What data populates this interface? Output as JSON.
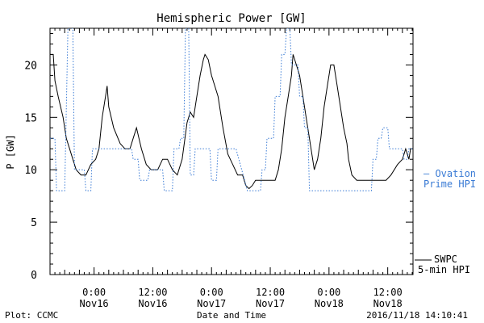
{
  "chart_data": {
    "type": "line",
    "title": "Hemispheric Power [GW]",
    "xlabel": "Date and Time",
    "ylabel": "P [GW]",
    "ylim": [
      0,
      23.5
    ],
    "xlim": [
      "2016-11-15 15:00",
      "2016-11-18 17:10"
    ],
    "yticks": [
      0,
      5,
      10,
      15,
      20
    ],
    "xticks": [
      {
        "time": "2016-11-16 00:00",
        "line1": "0:00",
        "line2": "Nov16"
      },
      {
        "time": "2016-11-16 12:00",
        "line1": "12:00",
        "line2": "Nov16"
      },
      {
        "time": "2016-11-17 00:00",
        "line1": "0:00",
        "line2": "Nov17"
      },
      {
        "time": "2016-11-17 12:00",
        "line1": "12:00",
        "line2": "Nov17"
      },
      {
        "time": "2016-11-18 00:00",
        "line1": "0:00",
        "line2": "Nov18"
      },
      {
        "time": "2016-11-18 12:00",
        "line1": "12:00",
        "line2": "Nov18"
      }
    ],
    "grid": false,
    "legend_position": "right",
    "series": [
      {
        "name": "SWPC 5-min HPI",
        "label_lines": [
          "SWPC",
          "5-min HPI"
        ],
        "color": "#000000",
        "style": "solid",
        "points": [
          [
            "2016-11-15 15:00",
            21
          ],
          [
            "2016-11-15 15:40",
            21
          ],
          [
            "2016-11-15 16:00",
            18.5
          ],
          [
            "2016-11-15 16:40",
            17
          ],
          [
            "2016-11-15 17:40",
            15
          ],
          [
            "2016-11-15 18:20",
            13
          ],
          [
            "2016-11-15 19:00",
            12
          ],
          [
            "2016-11-15 19:40",
            11
          ],
          [
            "2016-11-15 20:20",
            10
          ],
          [
            "2016-11-15 21:20",
            9.5
          ],
          [
            "2016-11-15 22:20",
            9.5
          ],
          [
            "2016-11-15 23:20",
            10.5
          ],
          [
            "2016-11-16 00:20",
            11
          ],
          [
            "2016-11-16 01:00",
            12
          ],
          [
            "2016-11-16 01:40",
            15
          ],
          [
            "2016-11-16 02:20",
            17
          ],
          [
            "2016-11-16 02:40",
            18
          ],
          [
            "2016-11-16 03:00",
            16
          ],
          [
            "2016-11-16 04:00",
            14
          ],
          [
            "2016-11-16 05:20",
            12.5
          ],
          [
            "2016-11-16 06:20",
            12
          ],
          [
            "2016-11-16 07:20",
            12
          ],
          [
            "2016-11-16 08:00",
            13
          ],
          [
            "2016-11-16 08:40",
            14
          ],
          [
            "2016-11-16 09:40",
            12
          ],
          [
            "2016-11-16 10:40",
            10.5
          ],
          [
            "2016-11-16 11:40",
            10
          ],
          [
            "2016-11-16 13:00",
            10
          ],
          [
            "2016-11-16 14:00",
            11
          ],
          [
            "2016-11-16 15:00",
            11
          ],
          [
            "2016-11-16 16:00",
            10
          ],
          [
            "2016-11-16 17:00",
            9.5
          ],
          [
            "2016-11-16 18:00",
            11
          ],
          [
            "2016-11-16 19:00",
            14.5
          ],
          [
            "2016-11-16 19:40",
            15.5
          ],
          [
            "2016-11-16 20:20",
            15
          ],
          [
            "2016-11-16 21:00",
            17
          ],
          [
            "2016-11-16 21:40",
            19
          ],
          [
            "2016-11-16 22:20",
            20.5
          ],
          [
            "2016-11-16 22:40",
            21
          ],
          [
            "2016-11-16 23:20",
            20.5
          ],
          [
            "2016-11-17 00:00",
            19
          ],
          [
            "2016-11-17 01:20",
            17
          ],
          [
            "2016-11-17 02:20",
            14
          ],
          [
            "2016-11-17 03:20",
            11.5
          ],
          [
            "2016-11-17 04:20",
            10.5
          ],
          [
            "2016-11-17 05:20",
            9.5
          ],
          [
            "2016-11-17 06:20",
            9.5
          ],
          [
            "2016-11-17 07:00",
            8.5
          ],
          [
            "2016-11-17 07:40",
            8.2
          ],
          [
            "2016-11-17 08:20",
            8.5
          ],
          [
            "2016-11-17 09:00",
            9
          ],
          [
            "2016-11-17 10:00",
            9
          ],
          [
            "2016-11-17 11:00",
            9
          ],
          [
            "2016-11-17 12:00",
            9
          ],
          [
            "2016-11-17 13:00",
            9
          ],
          [
            "2016-11-17 13:40",
            10
          ],
          [
            "2016-11-17 14:20",
            12
          ],
          [
            "2016-11-17 15:00",
            15
          ],
          [
            "2016-11-17 15:40",
            17
          ],
          [
            "2016-11-17 16:20",
            19
          ],
          [
            "2016-11-17 16:40",
            21
          ],
          [
            "2016-11-17 17:20",
            20
          ],
          [
            "2016-11-17 18:00",
            19
          ],
          [
            "2016-11-17 18:40",
            17
          ],
          [
            "2016-11-17 19:20",
            15
          ],
          [
            "2016-11-17 20:00",
            13
          ],
          [
            "2016-11-17 20:40",
            11
          ],
          [
            "2016-11-17 21:00",
            10
          ],
          [
            "2016-11-17 21:40",
            11
          ],
          [
            "2016-11-17 22:20",
            13
          ],
          [
            "2016-11-17 23:00",
            16
          ],
          [
            "2016-11-17 23:40",
            18
          ],
          [
            "2016-11-18 00:20",
            20
          ],
          [
            "2016-11-18 01:00",
            20
          ],
          [
            "2016-11-18 01:40",
            18
          ],
          [
            "2016-11-18 02:20",
            16
          ],
          [
            "2016-11-18 03:00",
            14
          ],
          [
            "2016-11-18 03:40",
            12.5
          ],
          [
            "2016-11-18 04:00",
            11
          ],
          [
            "2016-11-18 04:40",
            9.5
          ],
          [
            "2016-11-18 05:40",
            9
          ],
          [
            "2016-11-18 06:40",
            9
          ],
          [
            "2016-11-18 07:40",
            9
          ],
          [
            "2016-11-18 08:40",
            9
          ],
          [
            "2016-11-18 09:40",
            9
          ],
          [
            "2016-11-18 10:40",
            9
          ],
          [
            "2016-11-18 11:40",
            9
          ],
          [
            "2016-11-18 12:40",
            9.5
          ],
          [
            "2016-11-18 14:00",
            10.5
          ],
          [
            "2016-11-18 15:00",
            11
          ],
          [
            "2016-11-18 15:40",
            12
          ],
          [
            "2016-11-18 16:20",
            11
          ],
          [
            "2016-11-18 16:40",
            12
          ]
        ]
      },
      {
        "name": "Ovation Prime HPI",
        "label_lines": [
          "– Ovation",
          "Prime HPI"
        ],
        "color": "#3a7bd5",
        "style": "dotted",
        "points": [
          [
            "2016-11-15 15:00",
            13
          ],
          [
            "2016-11-15 16:00",
            13
          ],
          [
            "2016-11-15 16:20",
            8
          ],
          [
            "2016-11-15 18:00",
            8
          ],
          [
            "2016-11-15 18:40",
            23.5
          ],
          [
            "2016-11-15 19:40",
            23.5
          ],
          [
            "2016-11-15 20:00",
            10
          ],
          [
            "2016-11-15 22:00",
            10
          ],
          [
            "2016-11-15 22:20",
            8
          ],
          [
            "2016-11-15 23:20",
            8
          ],
          [
            "2016-11-15 23:40",
            12
          ],
          [
            "2016-11-16 02:00",
            12
          ],
          [
            "2016-11-16 02:20",
            12
          ],
          [
            "2016-11-16 07:40",
            12
          ],
          [
            "2016-11-16 08:00",
            11
          ],
          [
            "2016-11-16 09:00",
            11
          ],
          [
            "2016-11-16 09:20",
            9
          ],
          [
            "2016-11-16 11:00",
            9
          ],
          [
            "2016-11-16 11:20",
            10
          ],
          [
            "2016-11-16 14:00",
            10
          ],
          [
            "2016-11-16 14:20",
            8
          ],
          [
            "2016-11-16 16:00",
            8
          ],
          [
            "2016-11-16 16:20",
            12
          ],
          [
            "2016-11-16 17:20",
            12
          ],
          [
            "2016-11-16 17:40",
            13
          ],
          [
            "2016-11-16 18:20",
            13
          ],
          [
            "2016-11-16 18:40",
            23.5
          ],
          [
            "2016-11-16 19:20",
            23.5
          ],
          [
            "2016-11-16 19:40",
            9.5
          ],
          [
            "2016-11-16 20:20",
            9.5
          ],
          [
            "2016-11-16 20:40",
            12
          ],
          [
            "2016-11-16 23:40",
            12
          ],
          [
            "2016-11-17 00:00",
            9
          ],
          [
            "2016-11-17 01:00",
            9
          ],
          [
            "2016-11-17 01:20",
            12
          ],
          [
            "2016-11-17 05:00",
            12
          ],
          [
            "2016-11-17 07:20",
            8
          ],
          [
            "2016-11-17 10:00",
            8
          ],
          [
            "2016-11-17 10:20",
            10
          ],
          [
            "2016-11-17 11:00",
            10
          ],
          [
            "2016-11-17 11:20",
            13
          ],
          [
            "2016-11-17 12:40",
            13
          ],
          [
            "2016-11-17 13:00",
            17
          ],
          [
            "2016-11-17 14:00",
            17
          ],
          [
            "2016-11-17 14:20",
            21
          ],
          [
            "2016-11-17 15:00",
            21
          ],
          [
            "2016-11-17 15:20",
            23.5
          ],
          [
            "2016-11-17 16:00",
            23.5
          ],
          [
            "2016-11-17 16:20",
            20
          ],
          [
            "2016-11-17 17:40",
            20
          ],
          [
            "2016-11-17 18:00",
            17
          ],
          [
            "2016-11-17 18:40",
            17
          ],
          [
            "2016-11-17 19:00",
            14
          ],
          [
            "2016-11-17 19:40",
            14
          ],
          [
            "2016-11-17 20:00",
            8
          ],
          [
            "2016-11-18 08:40",
            8
          ],
          [
            "2016-11-18 09:00",
            11
          ],
          [
            "2016-11-18 09:40",
            11
          ],
          [
            "2016-11-18 10:00",
            13
          ],
          [
            "2016-11-18 10:40",
            13
          ],
          [
            "2016-11-18 11:00",
            14
          ],
          [
            "2016-11-18 12:00",
            14
          ],
          [
            "2016-11-18 12:20",
            12
          ],
          [
            "2016-11-18 15:00",
            12
          ],
          [
            "2016-11-18 15:20",
            11
          ],
          [
            "2016-11-18 16:00",
            11
          ],
          [
            "2016-11-18 16:20",
            12
          ],
          [
            "2016-11-18 17:10",
            12
          ]
        ]
      }
    ]
  },
  "footer": {
    "left": "Plot: CCMC",
    "center": "Date and Time",
    "right": "2016/11/18 14:10:41"
  }
}
